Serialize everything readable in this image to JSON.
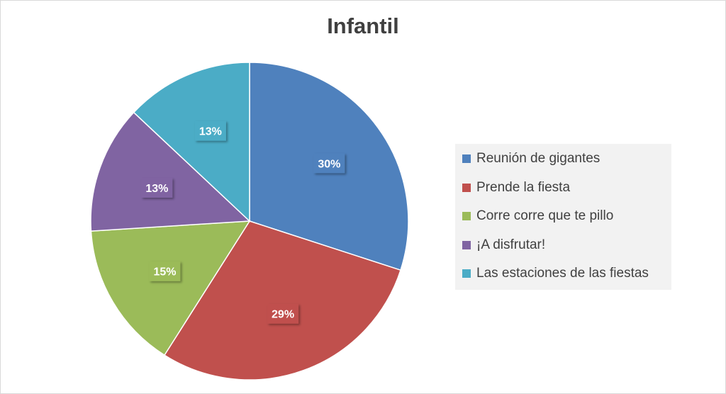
{
  "chart_data": {
    "type": "pie",
    "title": "Infantil",
    "categories": [
      "Reunión de gigantes",
      "Prende la fiesta",
      "Corre corre que te pillo",
      "¡A disfrutar!",
      "Las estaciones de las fiestas"
    ],
    "values": [
      30,
      29,
      15,
      13,
      13
    ],
    "value_labels": [
      "30%",
      "29%",
      "15%",
      "13%",
      "13%"
    ],
    "colors": [
      "#4f81bd",
      "#c0504d",
      "#9bbb59",
      "#8064a2",
      "#4bacc6"
    ],
    "legend_position": "right",
    "start_angle": "12 o'clock, clockwise"
  }
}
